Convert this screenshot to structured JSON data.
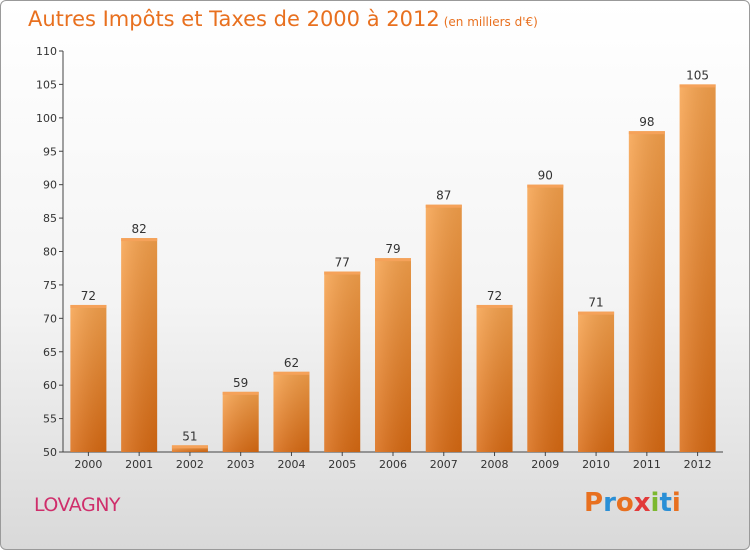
{
  "chart_data": {
    "type": "bar",
    "title": "Autres Impôts et Taxes de 2000 à 2012",
    "subtitle": "(en milliers d'€)",
    "categories": [
      "2000",
      "2001",
      "2002",
      "2003",
      "2004",
      "2005",
      "2006",
      "2007",
      "2008",
      "2009",
      "2010",
      "2011",
      "2012"
    ],
    "values": [
      72,
      82,
      51,
      59,
      62,
      77,
      79,
      87,
      72,
      90,
      71,
      98,
      105
    ],
    "ylim": [
      50,
      110
    ],
    "yticks": [
      50,
      55,
      60,
      65,
      70,
      75,
      80,
      85,
      90,
      95,
      100,
      105,
      110
    ],
    "grid": false,
    "bar_color": "#f0851e"
  },
  "footer": {
    "town": "LOVAGNY",
    "logo": "Proxiti"
  },
  "colors": {
    "title": "#e8701f",
    "town": "#cf2e6b"
  }
}
